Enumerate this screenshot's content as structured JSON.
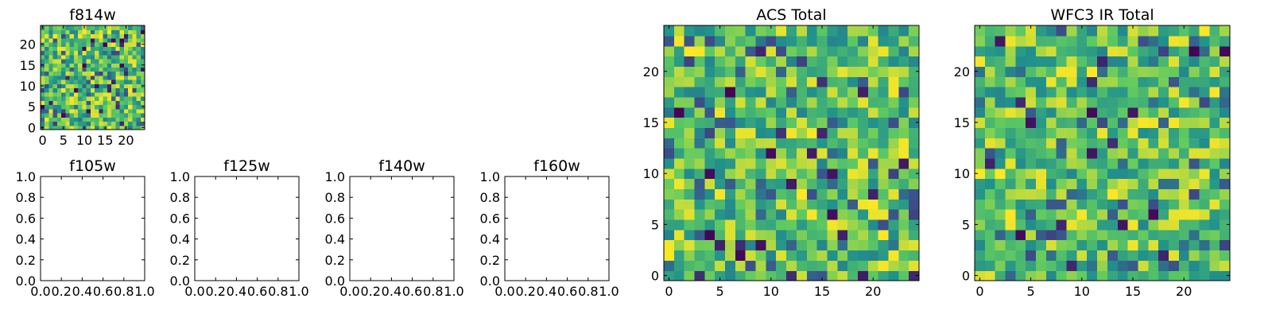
{
  "figure": {
    "colormap": "viridis",
    "colormap_stops": [
      "#440154",
      "#3b528b",
      "#21918c",
      "#5ec962",
      "#fde725"
    ]
  },
  "chart_data": [
    {
      "id": "f814w",
      "type": "heatmap",
      "title": "f814w",
      "grid_size": 25,
      "xlim": [
        -0.5,
        24.5
      ],
      "ylim": [
        -0.5,
        24.5
      ],
      "xticks": [
        0,
        5,
        10,
        15,
        20
      ],
      "yticks": [
        0,
        5,
        10,
        15,
        20
      ],
      "xtick_labels": [
        "0",
        "5",
        "10",
        "15",
        "20"
      ],
      "ytick_labels": [
        "0",
        "5",
        "10",
        "15",
        "20"
      ],
      "values": "25x25 grid of pseudo-random pixel intensities (not individually legible)",
      "seed": 814
    },
    {
      "id": "f105w",
      "type": "empty",
      "title": "f105w",
      "xlim": [
        0,
        1
      ],
      "ylim": [
        0,
        1
      ],
      "xtick_labels": [
        "0.0",
        "0.2",
        "0.4",
        "0.6",
        "0.8",
        "1.0"
      ],
      "ytick_labels": [
        "0.0",
        "0.2",
        "0.4",
        "0.6",
        "0.8",
        "1.0"
      ]
    },
    {
      "id": "f125w",
      "type": "empty",
      "title": "f125w",
      "xlim": [
        0,
        1
      ],
      "ylim": [
        0,
        1
      ],
      "xtick_labels": [
        "0.0",
        "0.2",
        "0.4",
        "0.6",
        "0.8",
        "1.0"
      ],
      "ytick_labels": [
        "0.0",
        "0.2",
        "0.4",
        "0.6",
        "0.8",
        "1.0"
      ]
    },
    {
      "id": "f140w",
      "type": "empty",
      "title": "f140w",
      "xlim": [
        0,
        1
      ],
      "ylim": [
        0,
        1
      ],
      "xtick_labels": [
        "0.0",
        "0.2",
        "0.4",
        "0.6",
        "0.8",
        "1.0"
      ],
      "ytick_labels": [
        "0.0",
        "0.2",
        "0.4",
        "0.6",
        "0.8",
        "1.0"
      ]
    },
    {
      "id": "f160w",
      "type": "empty",
      "title": "f160w",
      "xlim": [
        0,
        1
      ],
      "ylim": [
        0,
        1
      ],
      "xtick_labels": [
        "0.0",
        "0.2",
        "0.4",
        "0.6",
        "0.8",
        "1.0"
      ],
      "ytick_labels": [
        "0.0",
        "0.2",
        "0.4",
        "0.6",
        "0.8",
        "1.0"
      ]
    },
    {
      "id": "acs-total",
      "type": "heatmap",
      "title": "ACS Total",
      "grid_size": 25,
      "xlim": [
        -0.5,
        24.5
      ],
      "ylim": [
        -0.5,
        24.5
      ],
      "xticks": [
        0,
        5,
        10,
        15,
        20
      ],
      "yticks": [
        0,
        5,
        10,
        15,
        20
      ],
      "xtick_labels": [
        "0",
        "5",
        "10",
        "15",
        "20"
      ],
      "ytick_labels": [
        "0",
        "5",
        "10",
        "15",
        "20"
      ],
      "values": "25x25 grid of pseudo-random pixel intensities (not individually legible)",
      "seed": 1201
    },
    {
      "id": "wfc3-ir-total",
      "type": "heatmap",
      "title": "WFC3 IR Total",
      "grid_size": 25,
      "xlim": [
        -0.5,
        24.5
      ],
      "ylim": [
        -0.5,
        24.5
      ],
      "xticks": [
        0,
        5,
        10,
        15,
        20
      ],
      "yticks": [
        0,
        5,
        10,
        15,
        20
      ],
      "xtick_labels": [
        "0",
        "5",
        "10",
        "15",
        "20"
      ],
      "ytick_labels": [
        "0",
        "5",
        "10",
        "15",
        "20"
      ],
      "values": "25x25 grid of pseudo-random pixel intensities (not individually legible)",
      "seed": 3303
    }
  ]
}
